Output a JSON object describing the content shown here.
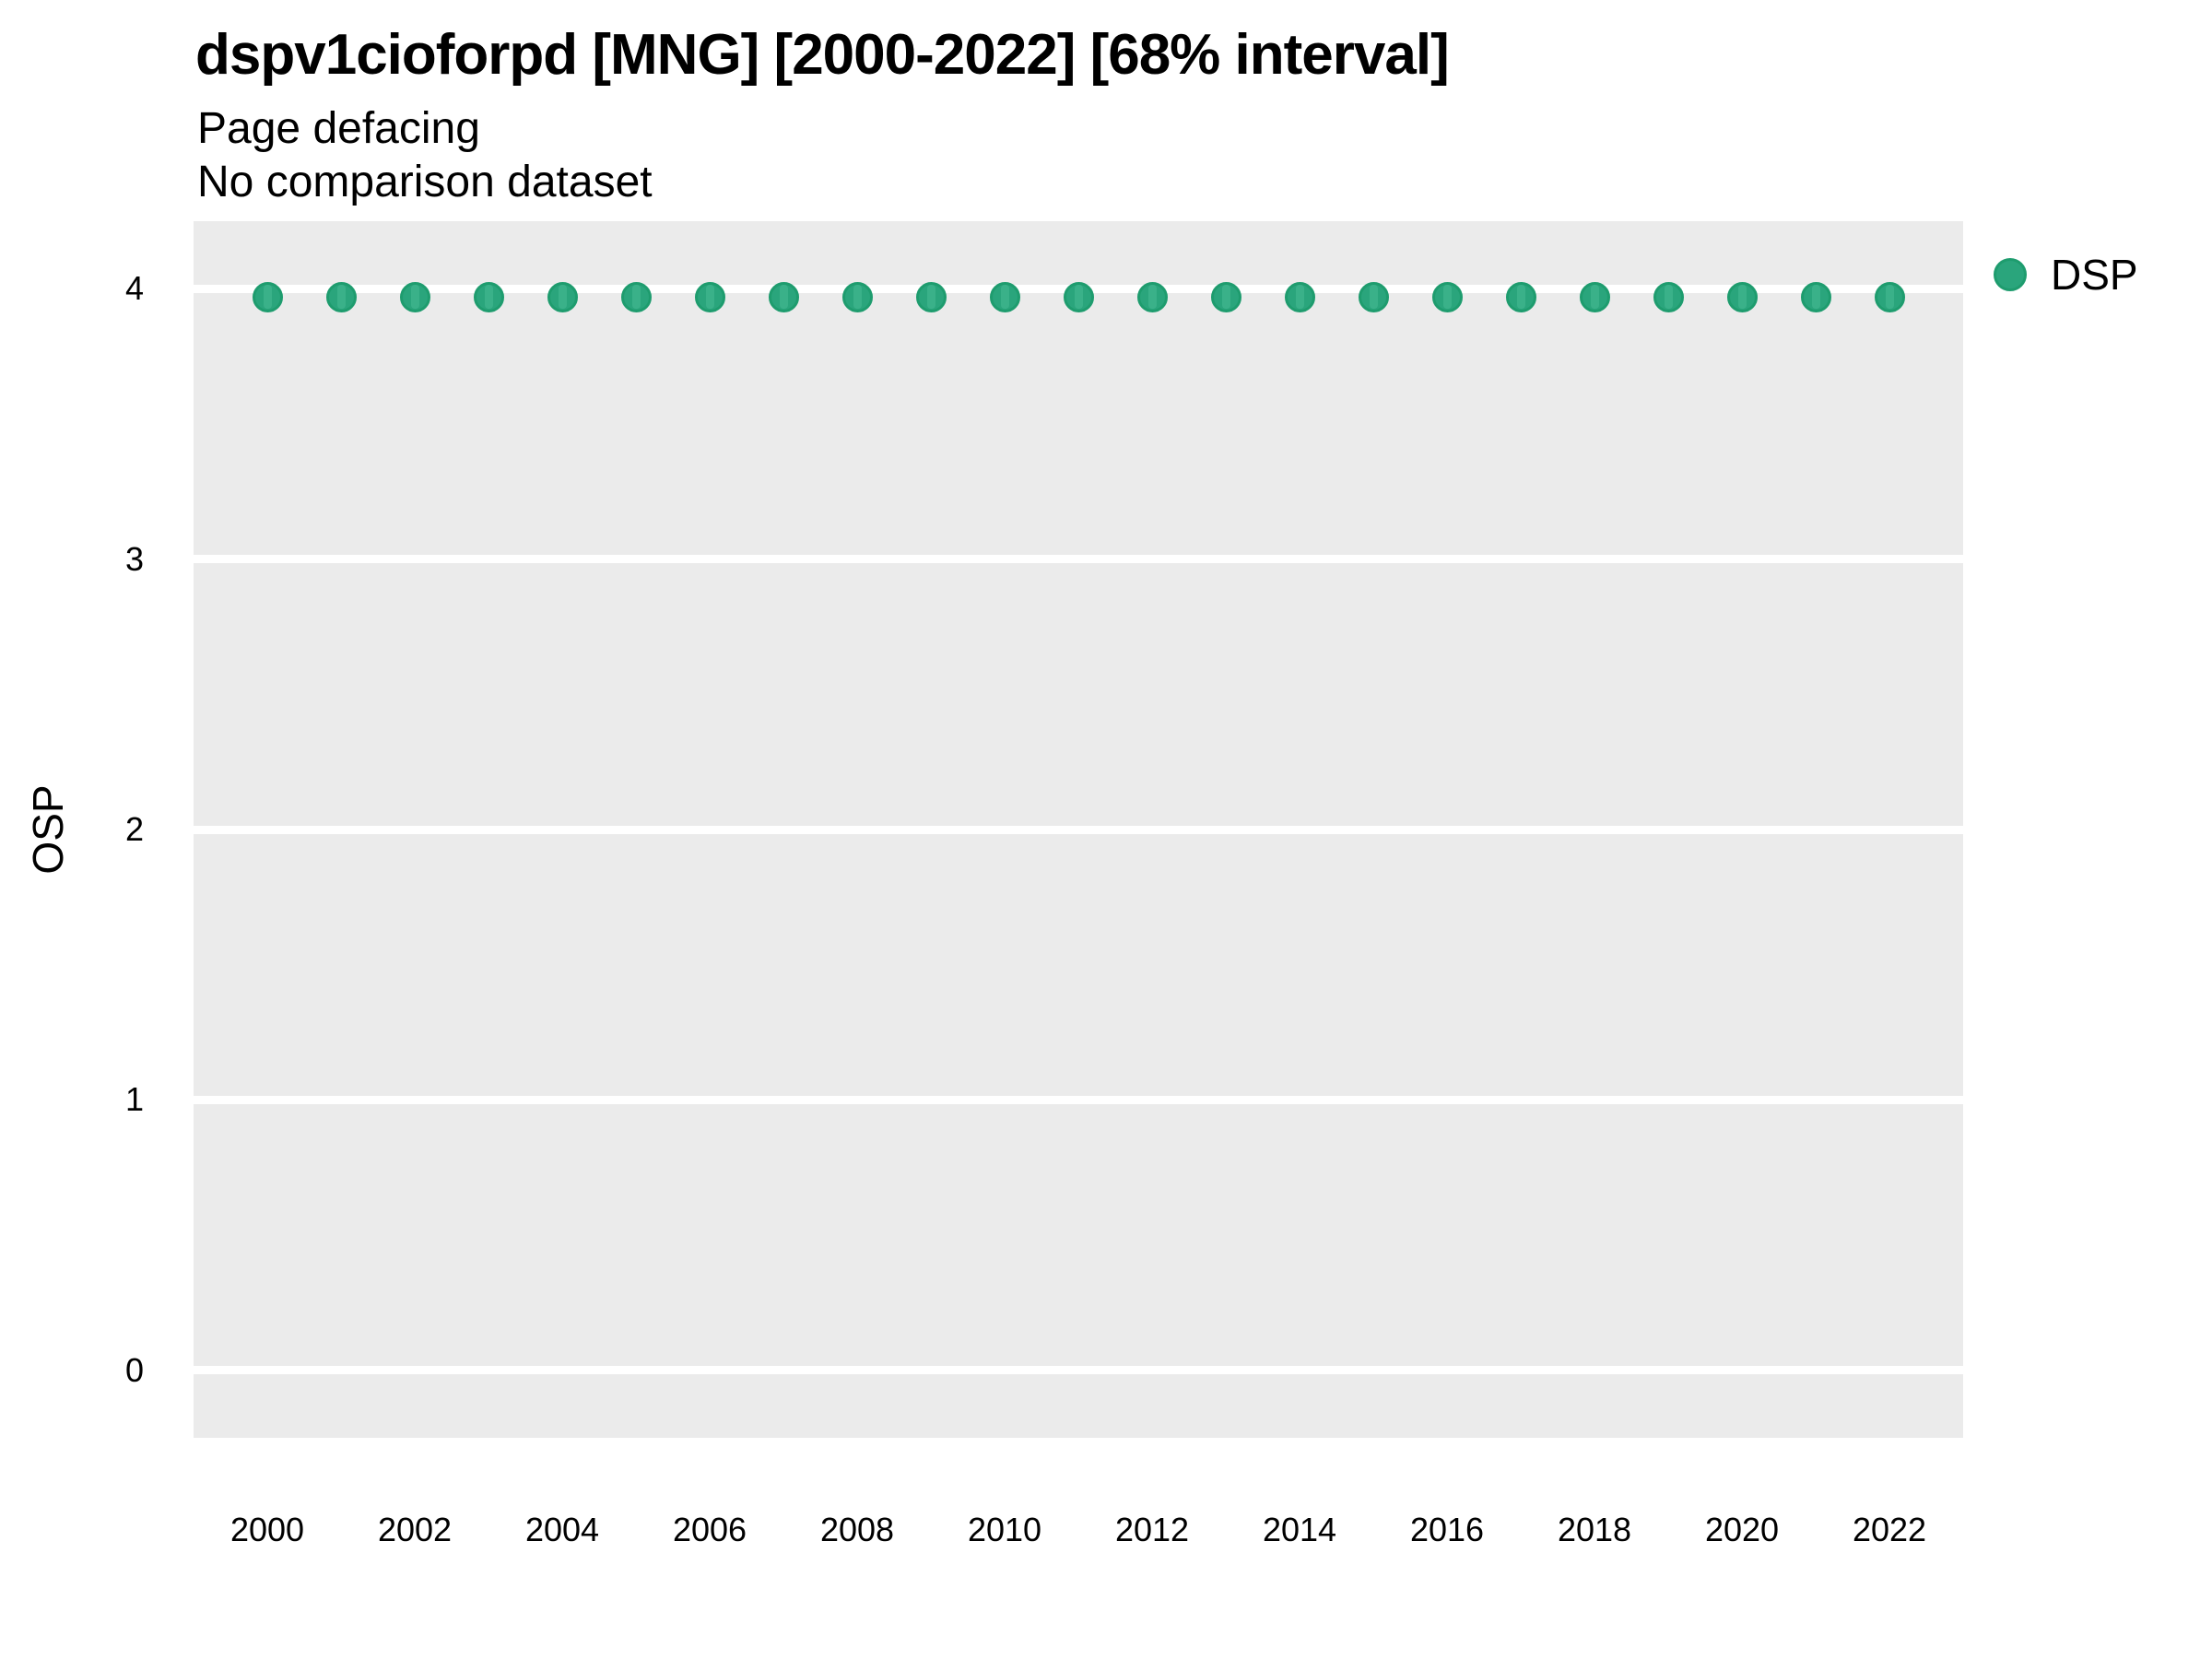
{
  "header": {
    "title": "dspv1cioforpd [MNG] [2000-2022] [68% interval]",
    "subtitle": "Page defacing",
    "note": "No comparison dataset"
  },
  "axes": {
    "y_title": "OSP",
    "x_title": ""
  },
  "legend": {
    "position": "right",
    "items": [
      {
        "label": "DSP",
        "marker": "circle",
        "color": "#2aa57c"
      }
    ]
  },
  "colors": {
    "point_fill": "#2aa57c",
    "point_edge": "#1e9c6e",
    "interval_stripe": "#3ab189",
    "panel_background": "#ebebeb",
    "gridline": "#ffffff",
    "text": "#000000",
    "figure_background": "#ffffff"
  },
  "chart_data": {
    "type": "scatter",
    "title": "dspv1cioforpd [MNG] [2000-2022] [68% interval]",
    "subtitle": "Page defacing",
    "note": "No comparison dataset",
    "xlabel": "",
    "ylabel": "OSP",
    "xlim": [
      1999,
      2023
    ],
    "ylim": [
      -0.25,
      4.25
    ],
    "x_ticks": [
      2000,
      2002,
      2004,
      2006,
      2008,
      2010,
      2012,
      2014,
      2016,
      2018,
      2020,
      2022
    ],
    "y_ticks": [
      0,
      1,
      2,
      3,
      4
    ],
    "grid": "horizontal-major-only",
    "legend_position": "right",
    "series": [
      {
        "name": "DSP",
        "x": [
          2000,
          2001,
          2002,
          2003,
          2004,
          2005,
          2006,
          2007,
          2008,
          2009,
          2010,
          2011,
          2012,
          2013,
          2014,
          2015,
          2016,
          2017,
          2018,
          2019,
          2020,
          2021,
          2022
        ],
        "y": [
          3.97,
          3.97,
          3.97,
          3.97,
          3.97,
          3.97,
          3.97,
          3.97,
          3.97,
          3.97,
          3.97,
          3.97,
          3.97,
          3.97,
          3.97,
          3.97,
          3.97,
          3.97,
          3.97,
          3.97,
          3.97,
          3.97,
          3.97
        ]
      }
    ]
  }
}
